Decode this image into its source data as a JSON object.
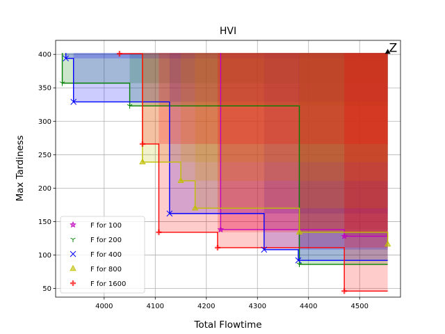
{
  "chart_data": {
    "type": "line",
    "title": "HVI",
    "xlabel": "Total Flowtime",
    "ylabel": "Max Tardiness",
    "xlim": [
      3905,
      4580
    ],
    "ylim": [
      37,
      421
    ],
    "xticks": [
      4000,
      4100,
      4200,
      4300,
      4400,
      4500
    ],
    "yticks": [
      50,
      100,
      150,
      200,
      250,
      300,
      350,
      400
    ],
    "grid": true,
    "legend_position": "lower-left",
    "reference_point": {
      "x": 4555,
      "y": 402,
      "label": "Z"
    },
    "series": [
      {
        "name": "F for 100",
        "color": "#bf00bf",
        "marker": "star",
        "fill_alpha": 0.2,
        "points": [
          [
            4228,
            138
          ],
          [
            4470,
            128
          ]
        ]
      },
      {
        "name": "F for 200",
        "color": "#008000",
        "marker": "tri_down",
        "fill_alpha": 0.2,
        "points": [
          [
            3918,
            357
          ],
          [
            4050,
            323
          ],
          [
            4382,
            86
          ]
        ]
      },
      {
        "name": "F for 400",
        "color": "#0000ff",
        "marker": "x",
        "fill_alpha": 0.2,
        "points": [
          [
            3925,
            394
          ],
          [
            3940,
            329
          ],
          [
            4128,
            162
          ],
          [
            4313,
            108
          ],
          [
            4380,
            92
          ]
        ]
      },
      {
        "name": "F for 800",
        "color": "#bfbf00",
        "marker": "triangle_up",
        "fill_alpha": 0.2,
        "points": [
          [
            4075,
            239
          ],
          [
            4150,
            211
          ],
          [
            4178,
            170
          ],
          [
            4382,
            134
          ],
          [
            4555,
            116
          ]
        ]
      },
      {
        "name": "F for 1600",
        "color": "#ff0000",
        "marker": "plus",
        "fill_alpha": 0.2,
        "points": [
          [
            4030,
            401
          ],
          [
            4075,
            266
          ],
          [
            4107,
            134
          ],
          [
            4222,
            111
          ],
          [
            4470,
            46
          ]
        ]
      }
    ]
  }
}
